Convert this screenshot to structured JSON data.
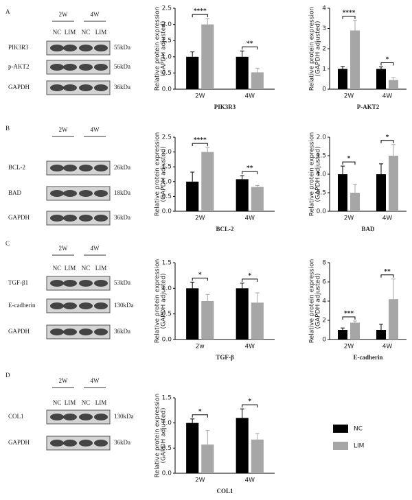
{
  "legend": [
    {
      "name": "NC",
      "color": "#000000"
    },
    {
      "name": "LIM",
      "color": "#a6a6a6"
    }
  ],
  "panels": [
    {
      "letter": "A",
      "groups": [
        "2W",
        "4W"
      ],
      "lanes": [
        "NC",
        "LIM",
        "NC",
        "LIM"
      ],
      "rows": [
        {
          "protein": "PIK3R3",
          "size": "55kDa"
        },
        {
          "protein": "p-AKT2",
          "size": "56kDa"
        },
        {
          "protein": "GAPDH",
          "size": "36kDa"
        }
      ]
    },
    {
      "letter": "B",
      "groups": [
        "2W",
        "4W"
      ],
      "rows": [
        {
          "protein": "BCL-2",
          "size": "26kDa"
        },
        {
          "protein": "BAD",
          "size": "18kDa"
        },
        {
          "protein": "GAPDH",
          "size": "36kDa"
        }
      ]
    },
    {
      "letter": "C",
      "groups": [
        "2W",
        "4W"
      ],
      "lanes": [
        "NC",
        "LIM",
        "NC",
        "LIM"
      ],
      "rows": [
        {
          "protein": "TGF-β1",
          "size": "53kDa"
        },
        {
          "protein": "E-cadherin",
          "size": "130kDa"
        },
        {
          "protein": "GAPDH",
          "size": "36kDa"
        }
      ]
    },
    {
      "letter": "D",
      "groups": [
        "2W",
        "4W"
      ],
      "lanes": [
        "NC",
        "LIM",
        "NC",
        "LIM"
      ],
      "rows": [
        {
          "protein": "COL1",
          "size": "130kDa"
        },
        {
          "protein": "GAPDH",
          "size": "36kDa"
        }
      ]
    }
  ],
  "chart_data": [
    {
      "type": "bar",
      "xlabel": "PIK3R3",
      "ylabel": [
        "Relative protein expression",
        "(GAPDH adjusted)"
      ],
      "categories": [
        "2W",
        "4W"
      ],
      "series": [
        {
          "values": [
            1.0,
            1.0
          ],
          "errors": [
            0.15,
            0.18
          ]
        },
        {
          "values": [
            2.0,
            0.52
          ],
          "errors": [
            0.18,
            0.13
          ]
        }
      ],
      "significance": [
        "****",
        "**"
      ],
      "ylim": [
        0,
        2.5
      ],
      "yticks": [
        {
          "value": 0,
          "label": "0.0"
        },
        0.5,
        {
          "value": 1,
          "label": "1.0"
        },
        1.5,
        {
          "value": 2,
          "label": "2.0"
        },
        2.5
      ]
    },
    {
      "type": "bar",
      "xlabel": "P-AKT2",
      "ylabel": [
        "Relative protein expression",
        "(GAPDH adjusted)"
      ],
      "categories": [
        "2W",
        "4W"
      ],
      "series": [
        {
          "values": [
            1.0,
            1.0
          ],
          "errors": [
            0.12,
            0.1
          ]
        },
        {
          "values": [
            2.9,
            0.45
          ],
          "errors": [
            0.5,
            0.12
          ]
        }
      ],
      "significance": [
        "****",
        "*"
      ],
      "ylim": [
        0,
        4
      ],
      "yticks": [
        0,
        1,
        2,
        3,
        4
      ]
    },
    {
      "type": "bar",
      "xlabel": "BCL-2",
      "ylabel": [
        "Relative protein expression",
        "(GAPDH adjusted)"
      ],
      "categories": [
        "2W",
        "4W"
      ],
      "series": [
        {
          "values": [
            1.0,
            1.08
          ],
          "errors": [
            0.32,
            0.12
          ]
        },
        {
          "values": [
            2.0,
            0.82
          ],
          "errors": [
            0.15,
            0.05
          ]
        }
      ],
      "significance": [
        "****",
        "**"
      ],
      "ylim": [
        0,
        2.5
      ],
      "yticks": [
        {
          "value": 0,
          "label": "0.0"
        },
        0.5,
        {
          "value": 1,
          "label": "1.0"
        },
        1.5,
        {
          "value": 2,
          "label": "2.0"
        },
        2.5
      ]
    },
    {
      "type": "bar",
      "xlabel": "BAD",
      "ylabel": [
        "Relative protein expression",
        "(GAPDH adjusted)"
      ],
      "categories": [
        "2W",
        "4W"
      ],
      "series": [
        {
          "values": [
            1.0,
            1.0
          ],
          "errors": [
            0.22,
            0.28
          ]
        },
        {
          "values": [
            0.5,
            1.5
          ],
          "errors": [
            0.23,
            0.3
          ]
        }
      ],
      "significance": [
        "*",
        "*"
      ],
      "ylim": [
        0,
        2
      ],
      "yticks": [
        {
          "value": 0,
          "label": "0.0"
        },
        0.5,
        {
          "value": 1,
          "label": "1.0"
        },
        1.5,
        {
          "value": 2,
          "label": "2.0"
        }
      ]
    },
    {
      "type": "bar",
      "xlabel": "TGF-β",
      "ylabel": [
        "Relative protein expression",
        "(GAPDH adjusted)"
      ],
      "categories": [
        "2w",
        "4W"
      ],
      "series": [
        {
          "values": [
            1.0,
            1.0
          ],
          "errors": [
            0.12,
            0.1
          ]
        },
        {
          "values": [
            0.75,
            0.72
          ],
          "errors": [
            0.13,
            0.19
          ]
        }
      ],
      "significance": [
        "*",
        "*"
      ],
      "ylim": [
        0,
        1.5
      ],
      "yticks": [
        {
          "value": 0,
          "label": "0.0"
        },
        0.5,
        {
          "value": 1,
          "label": "1.0"
        },
        1.5
      ]
    },
    {
      "type": "bar",
      "xlabel": "E-cadherin",
      "ylabel": [
        "Relative protein expression",
        "(GAPDH adjusted)"
      ],
      "categories": [
        "2W",
        "4W"
      ],
      "series": [
        {
          "values": [
            1.0,
            1.0
          ],
          "errors": [
            0.2,
            0.6
          ]
        },
        {
          "values": [
            1.75,
            4.2
          ],
          "errors": [
            0.18,
            2.1
          ]
        }
      ],
      "significance": [
        "***",
        "**"
      ],
      "ylim": [
        0,
        8
      ],
      "yticks": [
        0,
        2,
        4,
        6,
        8
      ]
    },
    {
      "type": "bar",
      "xlabel": "COL1",
      "ylabel": [
        "Relative protein expression",
        "(GAPDH adjusted)"
      ],
      "categories": [
        "2W",
        "4W"
      ],
      "series": [
        {
          "values": [
            1.0,
            1.1
          ],
          "errors": [
            0.08,
            0.18
          ]
        },
        {
          "values": [
            0.57,
            0.67
          ],
          "errors": [
            0.28,
            0.12
          ]
        }
      ],
      "significance": [
        "*",
        "*"
      ],
      "ylim": [
        0,
        1.5
      ],
      "yticks": [
        {
          "value": 0,
          "label": "0.0"
        },
        0.5,
        {
          "value": 1,
          "label": "1.0"
        },
        1.5
      ]
    }
  ]
}
